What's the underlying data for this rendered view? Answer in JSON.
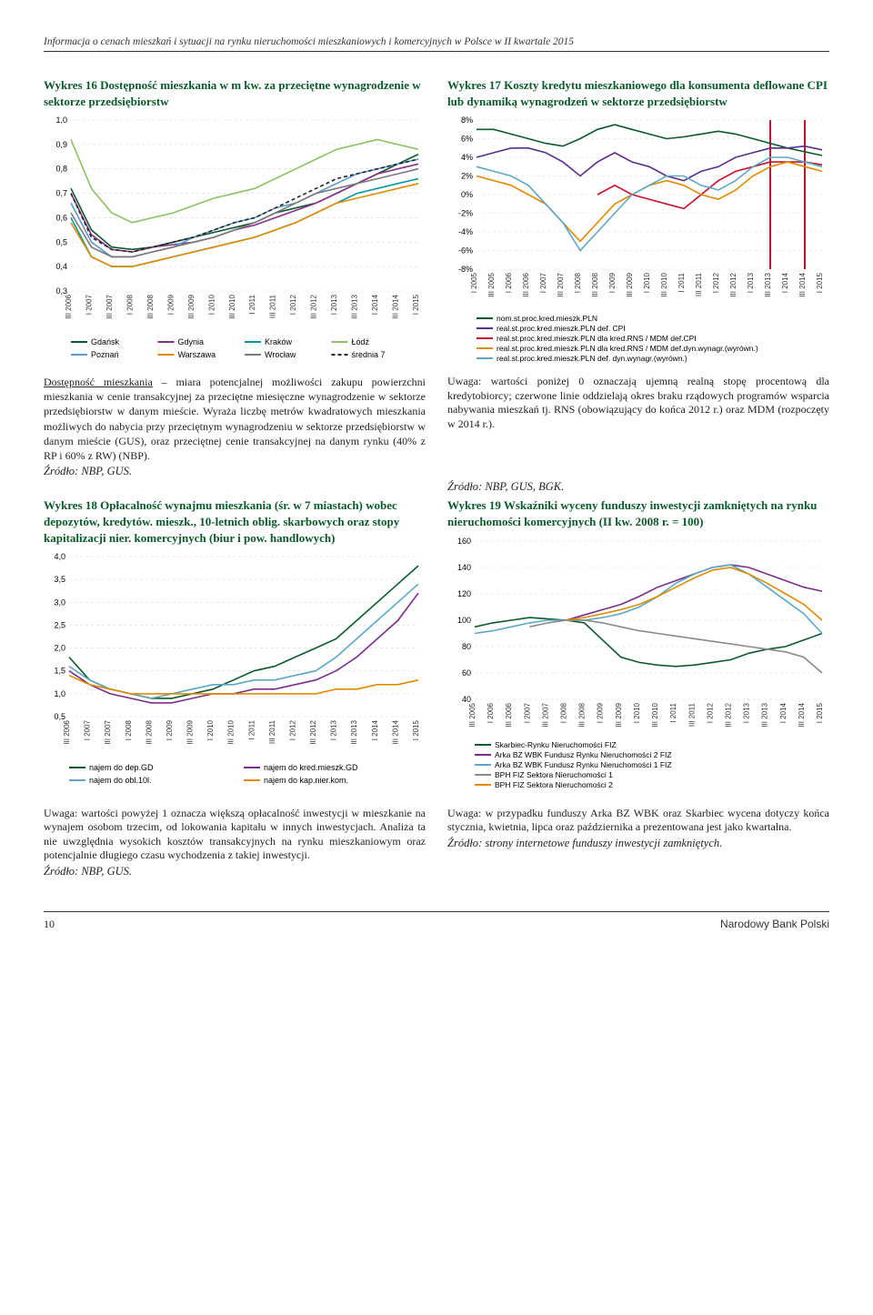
{
  "page_header": "Informacja o cenach mieszkań i sytuacji na rynku nieruchomości mieszkaniowych i komercyjnych w Polsce w II kwartale 2015",
  "footer_page": "10",
  "footer_right": "Narodowy Bank Polski",
  "fig16": {
    "title": "Wykres 16 Dostępność mieszkania w m kw. za przeciętne wynagrodzenie w sektorze przedsiębiorstw",
    "ylim": [
      0.3,
      1.0
    ],
    "yticks": [
      0.3,
      0.4,
      0.5,
      0.6,
      0.7,
      0.8,
      0.9,
      1.0
    ],
    "xlabels": [
      "III 2006",
      "I 2007",
      "III 2007",
      "I 2008",
      "III 2008",
      "I 2009",
      "III 2009",
      "I 2010",
      "III 2010",
      "I 2011",
      "III 2011",
      "I 2012",
      "III 2012",
      "I 2013",
      "III 2013",
      "I 2014",
      "III 2014",
      "I 2015"
    ],
    "series": [
      {
        "name": "Gdańsk",
        "color": "#0a5a2b",
        "legend_bold": false,
        "vals": [
          0.72,
          0.55,
          0.48,
          0.47,
          0.48,
          0.5,
          0.52,
          0.54,
          0.56,
          0.58,
          0.62,
          0.64,
          0.66,
          0.7,
          0.74,
          0.78,
          0.82,
          0.86
        ]
      },
      {
        "name": "Gdynia",
        "color": "#8b2e8b",
        "legend_bold": false,
        "vals": [
          0.7,
          0.53,
          0.47,
          0.46,
          0.48,
          0.49,
          0.5,
          0.52,
          0.55,
          0.57,
          0.6,
          0.63,
          0.66,
          0.7,
          0.74,
          0.78,
          0.8,
          0.82
        ]
      },
      {
        "name": "Kraków",
        "color": "#0097a7",
        "legend_bold": false,
        "vals": [
          0.6,
          0.44,
          0.4,
          0.4,
          0.42,
          0.44,
          0.46,
          0.48,
          0.5,
          0.52,
          0.55,
          0.58,
          0.62,
          0.66,
          0.7,
          0.72,
          0.74,
          0.76
        ]
      },
      {
        "name": "Łódź",
        "color": "#8bc063",
        "legend_bold": false,
        "vals": [
          0.92,
          0.72,
          0.62,
          0.58,
          0.6,
          0.62,
          0.65,
          0.68,
          0.7,
          0.72,
          0.76,
          0.8,
          0.84,
          0.88,
          0.9,
          0.92,
          0.9,
          0.88
        ]
      },
      {
        "name": "Poznań",
        "color": "#5a9bd4",
        "legend_bold": false,
        "vals": [
          0.66,
          0.5,
          0.44,
          0.44,
          0.46,
          0.48,
          0.52,
          0.55,
          0.58,
          0.6,
          0.64,
          0.66,
          0.7,
          0.74,
          0.78,
          0.8,
          0.82,
          0.84
        ]
      },
      {
        "name": "Warszawa",
        "color": "#e28b00",
        "legend_bold": false,
        "vals": [
          0.58,
          0.44,
          0.4,
          0.4,
          0.42,
          0.44,
          0.46,
          0.48,
          0.5,
          0.52,
          0.55,
          0.58,
          0.62,
          0.66,
          0.68,
          0.7,
          0.72,
          0.74
        ]
      },
      {
        "name": "Wrocław",
        "color": "#7a7a7a",
        "legend_bold": false,
        "vals": [
          0.62,
          0.48,
          0.44,
          0.44,
          0.46,
          0.48,
          0.5,
          0.52,
          0.55,
          0.58,
          0.62,
          0.66,
          0.7,
          0.72,
          0.74,
          0.76,
          0.78,
          0.8
        ]
      },
      {
        "name": "średnia 7",
        "color": "#222222",
        "dash": "4 3",
        "legend_bold": false,
        "vals": [
          0.7,
          0.52,
          0.47,
          0.46,
          0.48,
          0.5,
          0.52,
          0.55,
          0.58,
          0.6,
          0.64,
          0.68,
          0.72,
          0.76,
          0.78,
          0.8,
          0.82,
          0.84
        ]
      }
    ],
    "legend_rows": [
      [
        "Gdańsk",
        "Gdynia",
        "Kraków",
        "Łódź"
      ],
      [
        "Poznań",
        "Warszawa",
        "Wrocław",
        "średnia 7"
      ]
    ],
    "note": "Dostępność mieszkania – miara potencjalnej możliwości zakupu powierzchni mieszkania w cenie transakcyjnej za przeciętne miesięczne wynagrodzenie w sektorze przedsiębiorstw w danym mieście. Wyraża liczbę metrów kwadratowych mieszkania możliwych do nabycia przy przeciętnym wynagrodzeniu w sektorze przedsiębiorstw w danym mieście (GUS), oraz przeciętnej cenie transakcyjnej na danym rynku (40% z RP i 60% z RW) (NBP).",
    "source": "Źródło: NBP, GUS."
  },
  "fig17": {
    "title": "Wykres 17 Koszty kredytu mieszkaniowego dla konsumenta deflowane CPI lub dynamiką wynagrodzeń w sektorze przedsiębiorstw",
    "ylim": [
      -8,
      8
    ],
    "yticks": [
      -8,
      -6,
      -4,
      -2,
      0,
      2,
      4,
      6,
      8
    ],
    "ytick_labels": [
      "-8%",
      "-6%",
      "-4%",
      "-2%",
      "0%",
      "2%",
      "4%",
      "6%",
      "8%"
    ],
    "xlabels": [
      "I 2005",
      "III 2005",
      "I 2006",
      "III 2006",
      "I 2007",
      "III 2007",
      "I 2008",
      "III 2008",
      "I 2009",
      "III 2009",
      "I 2010",
      "III 2010",
      "I 2011",
      "III 2011",
      "I 2012",
      "III 2012",
      "I 2013",
      "III 2013",
      "I 2014",
      "III 2014",
      "I 2015"
    ],
    "vlines": [
      {
        "x": 17,
        "color": "#c8102e"
      },
      {
        "x": 19,
        "color": "#c8102e"
      }
    ],
    "series": [
      {
        "name": "nom.st.proc.kred.mieszk.PLN",
        "color": "#0a5a2b",
        "vals": [
          7,
          7,
          6.5,
          6,
          5.5,
          5.2,
          6,
          7,
          7.5,
          7,
          6.5,
          6,
          6.2,
          6.5,
          6.8,
          6.5,
          6,
          5.5,
          5,
          4.6,
          4.2
        ]
      },
      {
        "name": "real.st.proc.kred.mieszk.PLN def. CPI",
        "color": "#5a2e8b",
        "vals": [
          4,
          4.5,
          5,
          5,
          4.5,
          3.5,
          2,
          3.5,
          4.5,
          3.5,
          3,
          2,
          1.5,
          2.5,
          3,
          4,
          4.5,
          5,
          5,
          5.2,
          4.8
        ]
      },
      {
        "name": "real.st.proc.kred.mieszk.PLN dla kred.RNS / MDM def.CPI",
        "color": "#c8102e",
        "vals": [
          null,
          null,
          null,
          null,
          null,
          null,
          null,
          0,
          1,
          0,
          -0.5,
          -1,
          -1.5,
          0,
          1.5,
          2.5,
          3,
          3.5,
          3.5,
          3.5,
          3.2
        ]
      },
      {
        "name": "real.st.proc.kred.mieszk.PLN dla kred.RNS / MDM def.dyn.wynagr.(wyrówn.)",
        "color": "#e28b00",
        "vals": [
          2,
          1.5,
          1,
          0,
          -1,
          -3,
          -5,
          -3,
          -1,
          0,
          1,
          1.5,
          1,
          0,
          -0.5,
          0.5,
          2,
          3,
          3.5,
          3,
          2.5
        ]
      },
      {
        "name": "real.st.proc.kred.mieszk.PLN def. dyn.wynagr.(wyrówn.)",
        "color": "#5ba8c7",
        "vals": [
          3,
          2.5,
          2,
          1,
          -1,
          -3,
          -6,
          -4,
          -2,
          0,
          1,
          2,
          2,
          1,
          0.5,
          1.5,
          3,
          4,
          4,
          3.5,
          3
        ]
      }
    ],
    "legend_labels": [
      "nom.st.proc.kred.mieszk.PLN",
      "real.st.proc.kred.mieszk.PLN def. CPI",
      "real.st.proc.kred.mieszk.PLN dla kred.RNS / MDM def.CPI",
      "real.st.proc.kred.mieszk.PLN dla kred.RNS / MDM def.dyn.wynagr.(wyrówn.)",
      "real.st.proc.kred.mieszk.PLN def. dyn.wynagr.(wyrówn.)"
    ],
    "note": "Uwaga: wartości poniżej 0 oznaczają ujemną realną stopę procentową dla kredytobiorcy; czerwone linie oddzielają okres braku rządowych programów wsparcia nabywania mieszkań tj. RNS (obowiązujący do końca 2012 r.) oraz MDM (rozpoczęty w 2014 r.).",
    "source": "Źródło: NBP, GUS, BGK."
  },
  "fig18": {
    "title": "Wykres 18 Opłacalność wynajmu mieszkania (śr. w 7 miastach) wobec depozytów, kredytów. mieszk., 10-letnich oblig. skarbowych oraz stopy kapitalizacji nier. komercyjnych (biur i pow. handlowych)",
    "ylim": [
      0.5,
      4.0
    ],
    "yticks": [
      0.5,
      1.0,
      1.5,
      2.0,
      2.5,
      3.0,
      3.5,
      4.0
    ],
    "xlabels": [
      "III 2006",
      "I 2007",
      "III 2007",
      "I 2008",
      "III 2008",
      "I 2009",
      "III 2009",
      "I 2010",
      "III 2010",
      "I 2011",
      "III 2011",
      "I 2012",
      "III 2012",
      "I 2013",
      "III 2013",
      "I 2014",
      "III 2014",
      "I 2015"
    ],
    "series": [
      {
        "name": "najem do dep.GD",
        "color": "#0a5a2b",
        "vals": [
          1.8,
          1.3,
          1.1,
          1.0,
          0.9,
          0.9,
          1.0,
          1.1,
          1.3,
          1.5,
          1.6,
          1.8,
          2.0,
          2.2,
          2.6,
          3.0,
          3.4,
          3.8
        ]
      },
      {
        "name": "najem do kred.mieszk.GD",
        "color": "#7b2d8e",
        "vals": [
          1.5,
          1.2,
          1.0,
          0.9,
          0.8,
          0.8,
          0.9,
          1.0,
          1.0,
          1.1,
          1.1,
          1.2,
          1.3,
          1.5,
          1.8,
          2.2,
          2.6,
          3.2
        ]
      },
      {
        "name": "najem do obl.10l.",
        "color": "#5ba8c7",
        "vals": [
          1.6,
          1.3,
          1.1,
          1.0,
          0.9,
          1.0,
          1.1,
          1.2,
          1.2,
          1.3,
          1.3,
          1.4,
          1.5,
          1.8,
          2.2,
          2.6,
          3.0,
          3.4
        ]
      },
      {
        "name": "najem do kap.nier.kom.",
        "color": "#e28b00",
        "vals": [
          1.4,
          1.2,
          1.1,
          1.0,
          1.0,
          1.0,
          1.0,
          1.0,
          1.0,
          1.0,
          1.0,
          1.0,
          1.0,
          1.1,
          1.1,
          1.2,
          1.2,
          1.3
        ]
      }
    ],
    "legend_rows": [
      [
        "najem do dep.GD",
        "najem do kred.mieszk.GD"
      ],
      [
        "najem do obl.10l.",
        "najem do kap.nier.kom."
      ]
    ],
    "note": "Uwaga: wartości powyżej 1 oznacza większą opłacalność inwestycji w mieszkanie na wynajem osobom trzecim, od lokowania kapitału w innych inwestycjach. Analiza ta nie uwzględnia wysokich kosztów transakcyjnych na rynku mieszkaniowym oraz potencjalnie długiego czasu wychodzenia z takiej inwestycji.",
    "source": "Źródło: NBP, GUS."
  },
  "fig19": {
    "title": "Wykres 19 Wskaźniki wyceny funduszy inwestycji zamkniętych na rynku nieruchomości komercyjnych (II kw. 2008 r. = 100)",
    "ylim": [
      40,
      160
    ],
    "yticks": [
      40,
      60,
      80,
      100,
      120,
      140,
      160
    ],
    "xlabels": [
      "III 2005",
      "I 2006",
      "III 2006",
      "I 2007",
      "III 2007",
      "I 2008",
      "III 2008",
      "I 2009",
      "III 2009",
      "I 2010",
      "III 2010",
      "I 2011",
      "III 2011",
      "I 2012",
      "III 2012",
      "I 2013",
      "III 2013",
      "I 2014",
      "III 2014",
      "I 2015"
    ],
    "series": [
      {
        "name": "Skarbiec-Rynku Nieruchomości FIZ",
        "color": "#0a5a2b",
        "vals": [
          95,
          98,
          100,
          102,
          101,
          100,
          98,
          85,
          72,
          68,
          66,
          65,
          66,
          68,
          70,
          75,
          78,
          80,
          85,
          90
        ]
      },
      {
        "name": "Arka BZ WBK Fundusz Rynku Nieruchomości 2 FIZ",
        "color": "#7b2d8e",
        "vals": [
          null,
          null,
          null,
          null,
          null,
          100,
          104,
          108,
          112,
          118,
          125,
          130,
          135,
          140,
          142,
          140,
          135,
          130,
          125,
          122
        ]
      },
      {
        "name": "Arka BZ WBK Fundusz Rynku Nieruchomości 1 FIZ",
        "color": "#5ba8c7",
        "vals": [
          90,
          92,
          95,
          98,
          100,
          100,
          100,
          102,
          105,
          110,
          118,
          128,
          135,
          140,
          142,
          135,
          125,
          115,
          105,
          90
        ]
      },
      {
        "name": "BPH FIZ Sektora Nieruchomości 1",
        "color": "#8a8a8a",
        "vals": [
          null,
          null,
          null,
          95,
          98,
          100,
          100,
          98,
          95,
          92,
          90,
          88,
          86,
          84,
          82,
          80,
          78,
          76,
          72,
          60
        ]
      },
      {
        "name": "BPH FIZ Sektora Nieruchomości 2",
        "color": "#e28b00",
        "vals": [
          null,
          null,
          null,
          null,
          null,
          100,
          102,
          105,
          108,
          112,
          118,
          125,
          132,
          138,
          140,
          135,
          128,
          120,
          112,
          100
        ]
      }
    ],
    "legend_labels": [
      "Skarbiec-Rynku Nieruchomości FIZ",
      "Arka BZ WBK Fundusz Rynku Nieruchomości 2 FIZ",
      "Arka BZ WBK Fundusz Rynku Nieruchomości 1 FIZ",
      "BPH FIZ Sektora Nieruchomości 1",
      "BPH FIZ Sektora Nieruchomości 2"
    ],
    "note": "Uwaga: w przypadku funduszy Arka BZ WBK oraz Skarbiec wycena dotyczy końca stycznia, kwietnia, lipca oraz października a prezentowana jest jako kwartalna.",
    "source": "Źródło: strony internetowe funduszy inwestycji zamkniętych."
  }
}
